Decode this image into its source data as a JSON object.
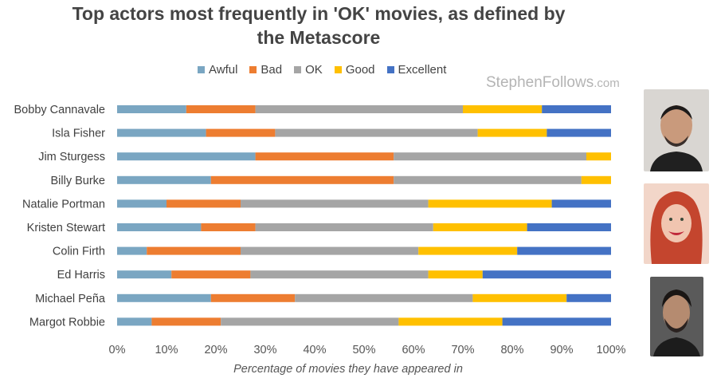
{
  "chart_data": {
    "type": "bar",
    "orientation": "horizontal",
    "stacked": true,
    "title": "Top actors most frequently in 'OK' movies, as defined by the Metascore",
    "title_lines": [
      "Top actors most frequently in 'OK' movies, as defined by",
      "the Metascore"
    ],
    "xlabel": "Percentage of movies they have appeared in",
    "ylabel": "",
    "xlim": [
      0,
      100
    ],
    "x_ticks": [
      0,
      10,
      20,
      30,
      40,
      50,
      60,
      70,
      80,
      90,
      100
    ],
    "x_tick_labels": [
      "0%",
      "10%",
      "20%",
      "30%",
      "40%",
      "50%",
      "60%",
      "70%",
      "80%",
      "90%",
      "100%"
    ],
    "legend_position": "top",
    "categories": [
      "Bobby Cannavale",
      "Isla Fisher",
      "Jim Sturgess",
      "Billy Burke",
      "Natalie Portman",
      "Kristen Stewart",
      "Colin Firth",
      "Ed Harris",
      "Michael Peña",
      "Margot Robbie"
    ],
    "series": [
      {
        "name": "Awful",
        "color": "#7aa6c2",
        "values": [
          14,
          18,
          28,
          19,
          10,
          17,
          6,
          11,
          19,
          7
        ]
      },
      {
        "name": "Bad",
        "color": "#ed7d31",
        "values": [
          14,
          14,
          28,
          37,
          15,
          11,
          19,
          16,
          17,
          14
        ]
      },
      {
        "name": "OK",
        "color": "#a5a5a5",
        "values": [
          42,
          41,
          39,
          38,
          38,
          36,
          36,
          36,
          36,
          36
        ]
      },
      {
        "name": "Good",
        "color": "#ffc000",
        "values": [
          16,
          14,
          5,
          6,
          25,
          19,
          20,
          11,
          19,
          21
        ]
      },
      {
        "name": "Excellent",
        "color": "#4472c4",
        "values": [
          14,
          13,
          0,
          0,
          12,
          17,
          19,
          26,
          9,
          22
        ]
      }
    ]
  },
  "watermark": {
    "main": "StephenFollows",
    "suffix": ".com"
  }
}
